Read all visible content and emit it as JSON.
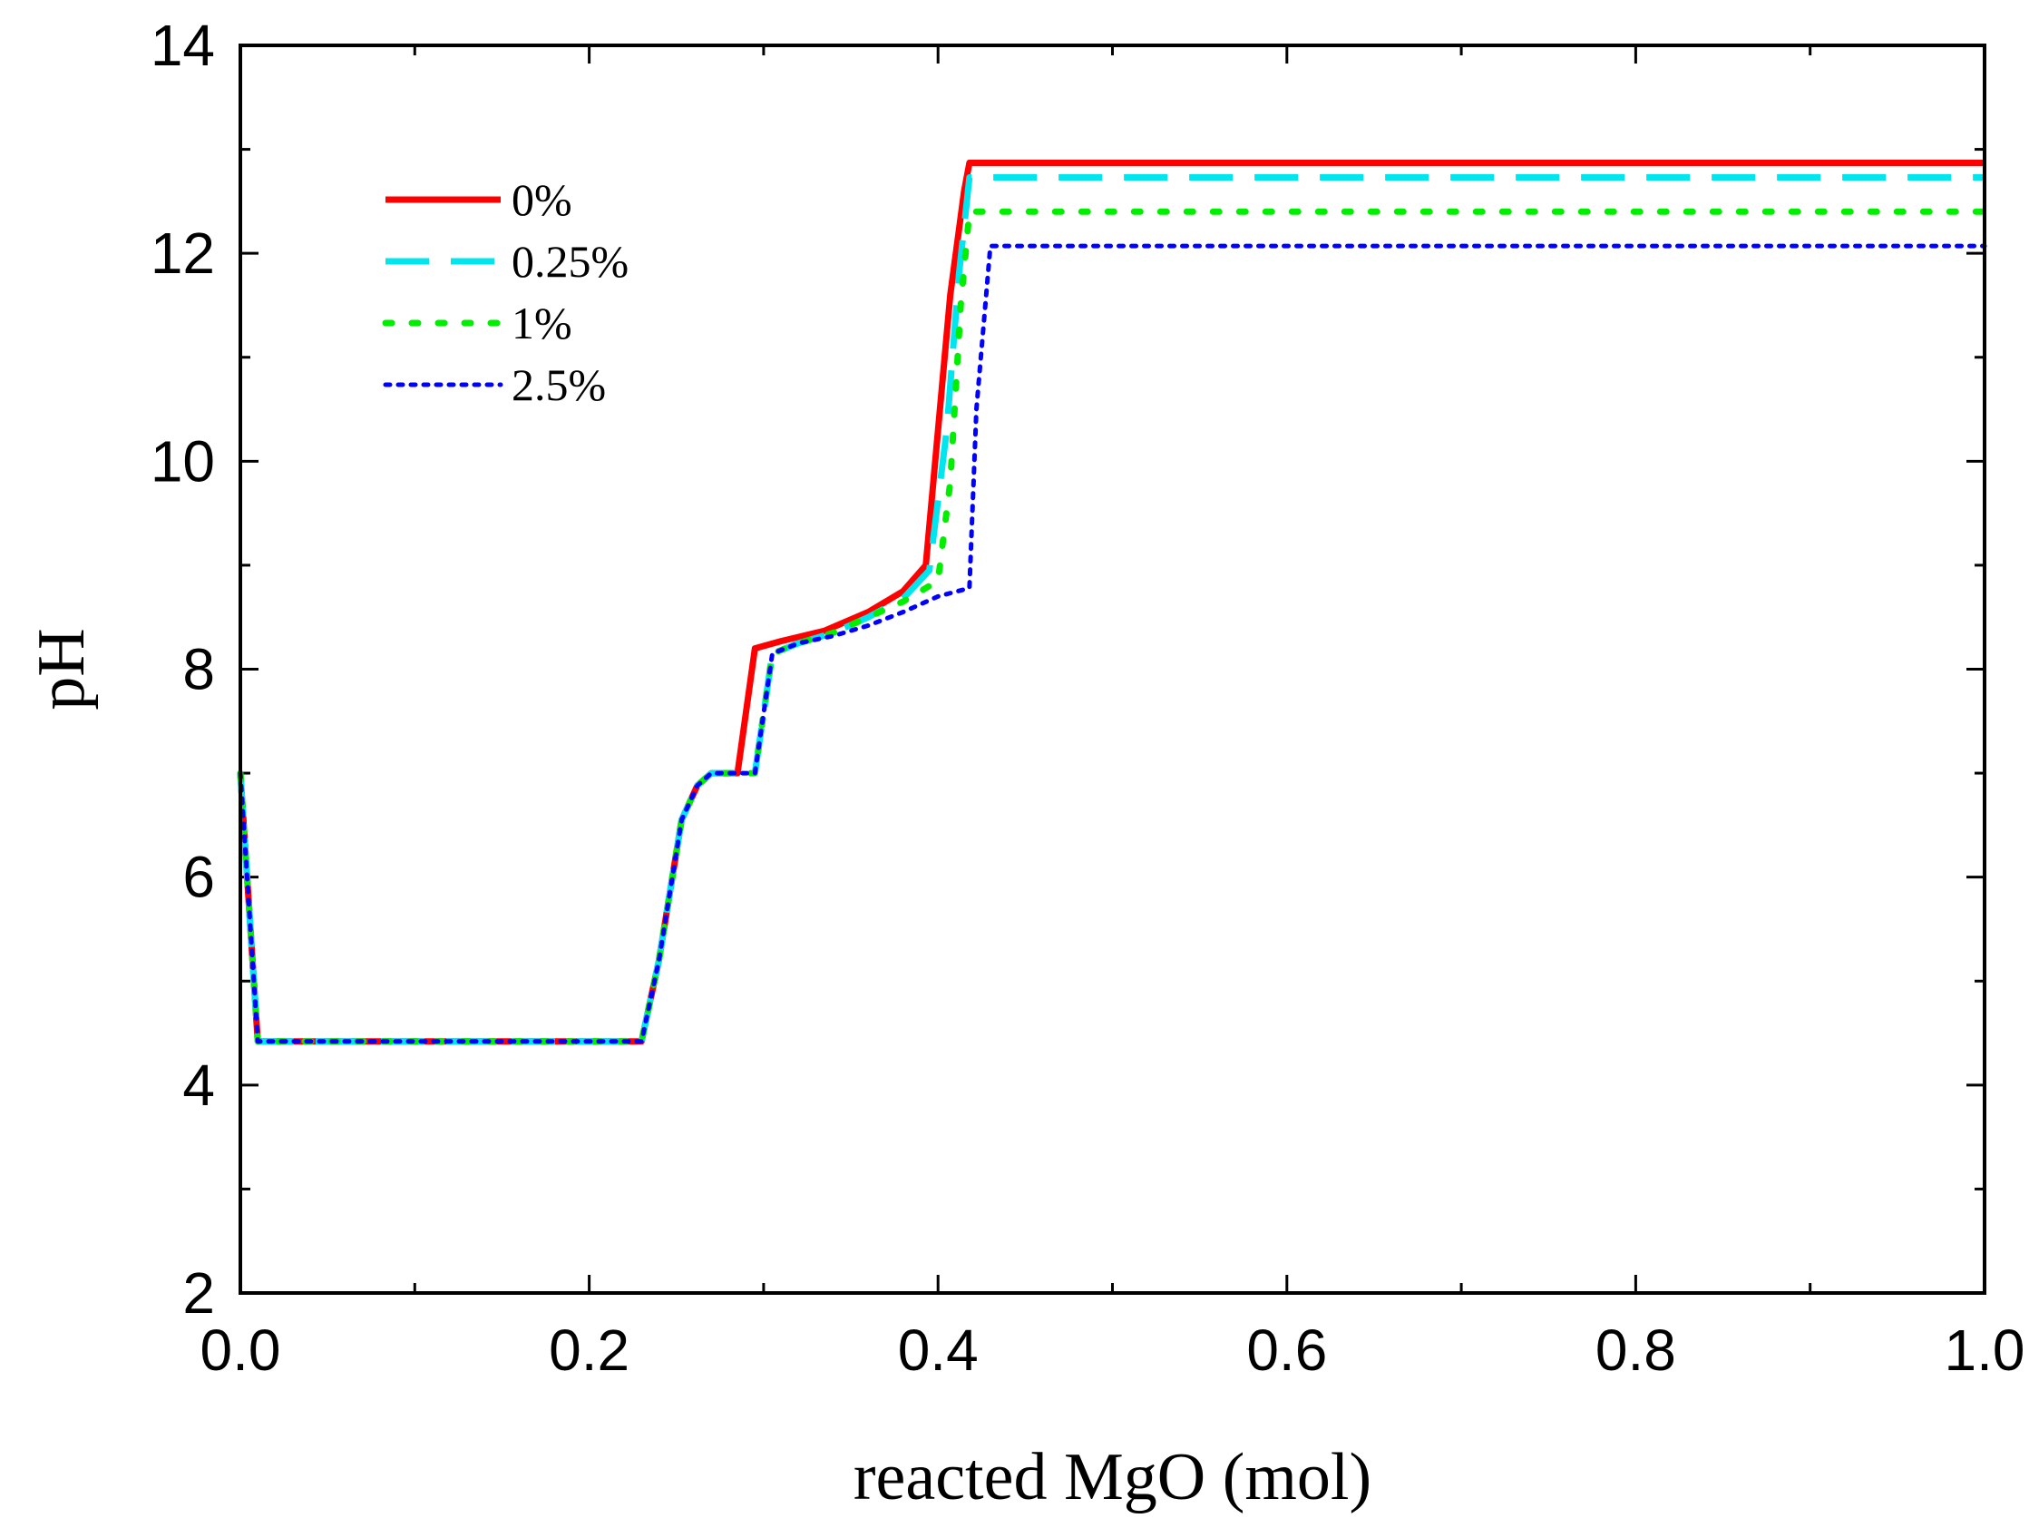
{
  "chart_data": {
    "type": "line",
    "title": "",
    "xlabel": "reacted MgO (mol)",
    "ylabel": "pH",
    "xlim": [
      0.0,
      1.0
    ],
    "ylim": [
      2,
      14
    ],
    "xticks": [
      "0.0",
      "0.2",
      "0.4",
      "0.6",
      "0.8",
      "1.0"
    ],
    "yticks": [
      "2",
      "4",
      "6",
      "8",
      "10",
      "12",
      "14"
    ],
    "grid": false,
    "legend_position": "top-left",
    "series": [
      {
        "name": "0%",
        "color": "#ff0000",
        "style": "solid",
        "x": [
          0.0,
          0.01,
          0.23,
          0.24,
          0.253,
          0.262,
          0.27,
          0.285,
          0.295,
          0.31,
          0.335,
          0.36,
          0.38,
          0.393,
          0.4,
          0.407,
          0.415,
          0.418,
          1.0
        ],
        "y": [
          7.0,
          4.42,
          4.42,
          5.2,
          6.55,
          6.88,
          7.0,
          7.0,
          8.2,
          8.27,
          8.37,
          8.55,
          8.75,
          9.0,
          10.3,
          11.6,
          12.6,
          12.87,
          12.87
        ]
      },
      {
        "name": "0.25%",
        "color": "#00e5ee",
        "style": "dashed",
        "x": [
          0.0,
          0.01,
          0.23,
          0.24,
          0.253,
          0.262,
          0.27,
          0.295,
          0.305,
          0.32,
          0.34,
          0.36,
          0.38,
          0.395,
          0.405,
          0.412,
          0.418,
          1.0
        ],
        "y": [
          7.0,
          4.42,
          4.42,
          5.2,
          6.55,
          6.88,
          7.0,
          7.0,
          8.15,
          8.25,
          8.35,
          8.5,
          8.68,
          8.95,
          10.3,
          11.8,
          12.73,
          12.73
        ]
      },
      {
        "name": "1%",
        "color": "#00ee00",
        "style": "dotted",
        "x": [
          0.0,
          0.01,
          0.23,
          0.24,
          0.253,
          0.262,
          0.27,
          0.295,
          0.305,
          0.32,
          0.34,
          0.36,
          0.38,
          0.4,
          0.407,
          0.413,
          0.418,
          1.0
        ],
        "y": [
          7.0,
          4.42,
          4.42,
          5.2,
          6.55,
          6.88,
          7.0,
          7.0,
          8.15,
          8.25,
          8.35,
          8.5,
          8.65,
          8.85,
          9.8,
          11.5,
          12.4,
          12.4
        ]
      },
      {
        "name": "2.5%",
        "color": "#0000ff",
        "style": "dotted",
        "x": [
          0.0,
          0.01,
          0.23,
          0.24,
          0.253,
          0.262,
          0.27,
          0.295,
          0.305,
          0.32,
          0.34,
          0.36,
          0.38,
          0.4,
          0.418,
          0.422,
          0.43,
          1.0
        ],
        "y": [
          7.0,
          4.42,
          4.42,
          5.2,
          6.55,
          6.88,
          7.0,
          7.0,
          8.15,
          8.25,
          8.32,
          8.42,
          8.55,
          8.7,
          8.78,
          10.5,
          12.07,
          12.07
        ]
      }
    ]
  }
}
